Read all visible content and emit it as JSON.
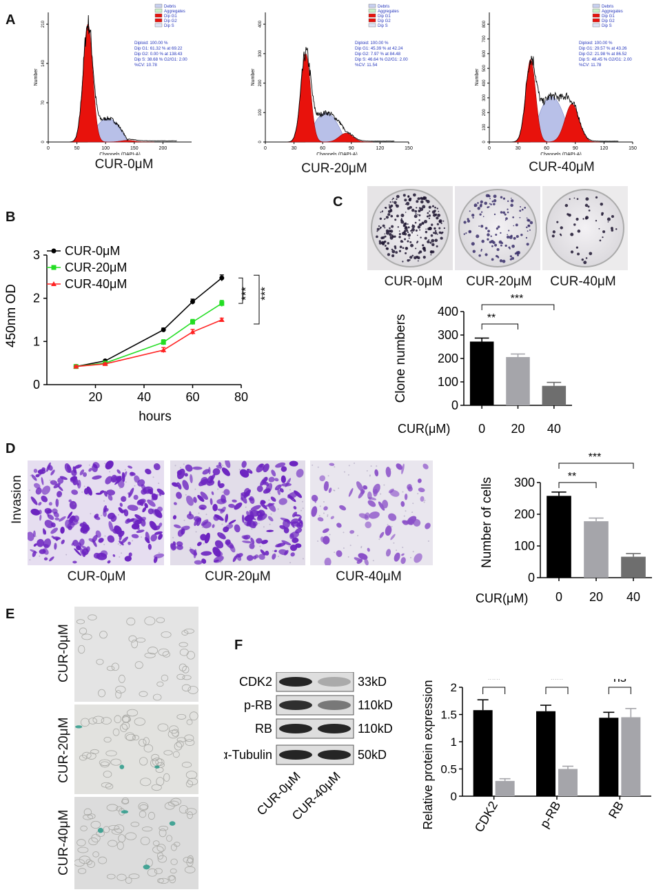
{
  "panels": {
    "A": {
      "label": "A",
      "histograms": [
        {
          "caption": "CUR-0μM",
          "legend": [
            "Debris",
            "Aggregates",
            "Dip G1",
            "Dip G2",
            "Dip S"
          ],
          "stats": [
            "Diploid: 100.00 %",
            "Dip G1: 61.32 % at 69.22",
            "Dip G2: 0.00 % at 138.43",
            "Dip S: 38.68 %   G2/G1: 2.00",
            "%CV: 10.78"
          ],
          "ylabel": "Number",
          "xlabel": "Channels (DAPI-A)",
          "xticks": [
            "0",
            "50",
            "100",
            "150",
            "200"
          ],
          "yticks": [
            "0",
            "70",
            "140",
            "210"
          ],
          "xmax": 250,
          "g1": 69.22,
          "g2": 138.43,
          "peak": 210
        },
        {
          "caption": "CUR-20μM",
          "legend": [
            "Debris",
            "Aggregates",
            "Dip G1",
            "Dip G2",
            "Dip S"
          ],
          "stats": [
            "Diploid: 100.00 %",
            "Dip G1: 45.39 % at 42.24",
            "Dip G2: 7.97 % at 84.48",
            "Dip S: 46.64 %   G2/G1: 2.00",
            "%CV: 11.54"
          ],
          "ylabel": "Number",
          "xlabel": "Channels (DAPI-A)",
          "xticks": [
            "0",
            "30",
            "60",
            "90",
            "120",
            "150"
          ],
          "yticks": [
            "0",
            "100",
            "200",
            "300",
            "400"
          ],
          "xmax": 150,
          "g1": 42.24,
          "g2": 84.48,
          "peak": 300
        },
        {
          "caption": "CUR-40μM",
          "legend": [
            "Debris",
            "Aggregates",
            "Dip G1",
            "Dip G2",
            "Dip S"
          ],
          "stats": [
            "Diploid: 100.00 %",
            "Dip G1: 29.57 % at 43.26",
            "Dip G2: 21.98 % at 86.52",
            "Dip S: 48.45 %   G2/G1: 2.00",
            "%CV: 11.78"
          ],
          "ylabel": "Number",
          "xlabel": "Channels (DAPI-A)",
          "xticks": [
            "0",
            "30",
            "60",
            "90",
            "120",
            "150"
          ],
          "yticks": [
            "0",
            "100",
            "200",
            "300",
            "400",
            "500",
            "600",
            "700",
            "800"
          ],
          "xmax": 150,
          "g1": 43.26,
          "g2": 86.52,
          "peak": 560
        }
      ]
    },
    "B": {
      "label": "B",
      "legend": [
        "CUR-0μM",
        "CUR-20μM",
        "CUR-40μM"
      ],
      "ylabel": "450nm OD",
      "xlabel": "hours",
      "sig": [
        "***",
        "***"
      ]
    },
    "C": {
      "label": "C",
      "captions": [
        "CUR-0μM",
        "CUR-20μM",
        "CUR-40μM"
      ],
      "ylabel": "Clone numbers",
      "xtitle": "CUR(μM)",
      "sig": [
        "**",
        "***"
      ]
    },
    "D": {
      "label": "D",
      "side_label": "Invasion",
      "captions": [
        "CUR-0μM",
        "CUR-20μM",
        "CUR-40μM"
      ],
      "ylabel": "Number of cells",
      "xtitle": "CUR(μM)",
      "sig": [
        "**",
        "***"
      ]
    },
    "E": {
      "label": "E",
      "rows": [
        "CUR-0μM",
        "CUR-20μM",
        "CUR-40μM"
      ]
    },
    "F": {
      "label": "F",
      "blot_rows": [
        {
          "name": "CDK2",
          "size": "33kD",
          "b1": 0.9,
          "b2": 0.25
        },
        {
          "name": "p-RB",
          "size": "110kD",
          "b1": 0.85,
          "b2": 0.5
        },
        {
          "name": "RB",
          "size": "110kD",
          "b1": 0.9,
          "b2": 0.9
        },
        {
          "name": "α-Tubulin",
          "size": "50kD",
          "b1": 0.9,
          "b2": 0.9
        }
      ],
      "lanes": [
        "CUR-0μM",
        "CUR-40μM"
      ],
      "ylabel": "Relative protein expression",
      "sig": [
        "***",
        "***",
        "ns"
      ]
    }
  },
  "chart_data": [
    {
      "type": "line",
      "x": [
        12,
        24,
        48,
        60,
        72
      ],
      "series": [
        {
          "name": "CUR-0μM",
          "color": "#000000",
          "values": [
            0.42,
            0.55,
            1.27,
            1.92,
            2.47
          ],
          "err": [
            0.02,
            0.02,
            0.04,
            0.06,
            0.07
          ]
        },
        {
          "name": "CUR-20μM",
          "color": "#22dd22",
          "values": [
            0.42,
            0.5,
            0.98,
            1.45,
            1.88
          ],
          "err": [
            0.02,
            0.02,
            0.06,
            0.06,
            0.07
          ]
        },
        {
          "name": "CUR-40μM",
          "color": "#ff2222",
          "values": [
            0.42,
            0.48,
            0.8,
            1.22,
            1.5
          ],
          "err": [
            0.02,
            0.02,
            0.06,
            0.06,
            0.04
          ]
        }
      ],
      "xlabel": "hours",
      "ylabel": "450nm OD",
      "xlim": [
        0,
        80
      ],
      "ylim": [
        0,
        3
      ],
      "xticks": [
        20,
        40,
        60,
        80
      ],
      "yticks": [
        0,
        1,
        2,
        3
      ],
      "legend": "top-left"
    },
    {
      "type": "bar",
      "categories": [
        "0",
        "20",
        "40"
      ],
      "values": [
        272,
        206,
        83
      ],
      "err": [
        15,
        13,
        15
      ],
      "colors": [
        "#000000",
        "#a5a5aa",
        "#6e6e6e"
      ],
      "ylabel": "Clone numbers",
      "xlabel": "CUR(μM)",
      "ylim": [
        0,
        400
      ],
      "yticks": [
        0,
        100,
        200,
        300,
        400
      ]
    },
    {
      "type": "bar",
      "categories": [
        "0",
        "20",
        "40"
      ],
      "values": [
        258,
        178,
        66
      ],
      "err": [
        12,
        10,
        10
      ],
      "colors": [
        "#000000",
        "#a5a5aa",
        "#6e6e6e"
      ],
      "ylabel": "Number of cells",
      "xlabel": "CUR(μM)",
      "ylim": [
        0,
        300
      ],
      "yticks": [
        0,
        100,
        200,
        300
      ]
    },
    {
      "type": "bar",
      "categories": [
        "CDK2",
        "p-RB",
        "RB"
      ],
      "series": [
        {
          "color": "#000000",
          "values": [
            1.58,
            1.56,
            1.44
          ],
          "err": [
            0.19,
            0.11,
            0.1
          ]
        },
        {
          "color": "#a5a5aa",
          "values": [
            0.28,
            0.5,
            1.45
          ],
          "err": [
            0.04,
            0.05,
            0.16
          ]
        }
      ],
      "ylabel": "Relative protein expression",
      "ylim": [
        0,
        2
      ],
      "yticks": [
        0,
        0.5,
        1,
        1.5,
        2
      ]
    }
  ]
}
